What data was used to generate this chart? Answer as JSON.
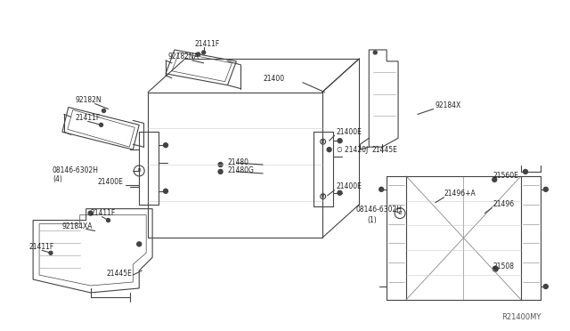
{
  "bg": "#ffffff",
  "lc": "#444444",
  "tc": "#222222",
  "fw": 6.4,
  "fh": 3.72,
  "dpi": 100,
  "watermark": "R21400MY",
  "label_21400": "21400",
  "label_21411F": "21411F",
  "label_92182NA": "92182NA",
  "label_92182N": "92182N",
  "label_21400E": "21400E",
  "label_21420J": "21420J",
  "label_21480": "21480",
  "label_21480G": "21480G",
  "label_08146left": "08146-6302H",
  "label_4": "(4)",
  "label_08146right": "08146-6302H",
  "label_1": "(1)",
  "label_92184X": "92184X",
  "label_21445E": "21445E",
  "label_92184XA": "92184XA",
  "label_21496A": "21496+A",
  "label_21560E": "21560E",
  "label_21496": "21496",
  "label_21508": "21508"
}
